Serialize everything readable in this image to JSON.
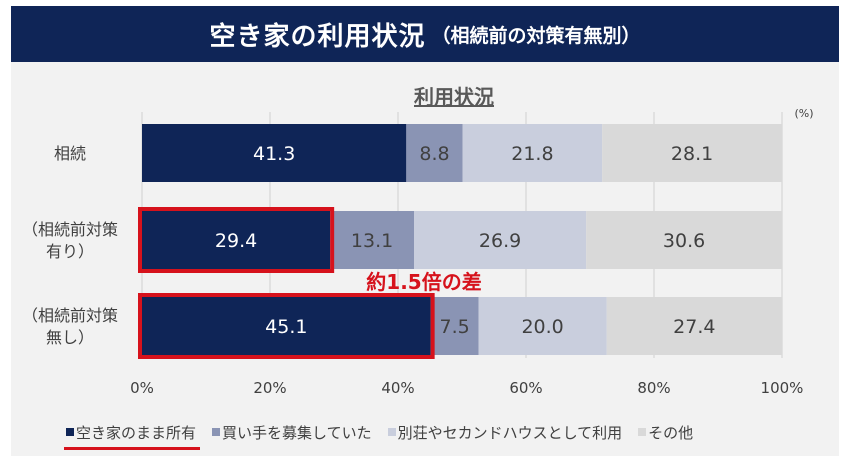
{
  "header": {
    "title": "空き家の利用状況",
    "subtitle": "（相続前の対策有無別）"
  },
  "chart_data": {
    "type": "bar",
    "orientation": "horizontal",
    "stacked": true,
    "title": "利用状況",
    "unit_label": "(%)",
    "categories": [
      [
        "相続"
      ],
      [
        "（相続前対策",
        "有り）"
      ],
      [
        "（相続前対策",
        "無し）"
      ]
    ],
    "series": [
      {
        "name": "空き家のまま所有",
        "values": [
          41.3,
          29.4,
          45.1
        ],
        "color": "#0f2557",
        "label_color": "#ffffff"
      },
      {
        "name": "買い手を募集していた",
        "values": [
          8.8,
          13.1,
          7.5
        ],
        "color": "#8a94b4",
        "label_color": "#404040"
      },
      {
        "name": "別荘やセカンドハウスとして利用",
        "values": [
          21.8,
          26.9,
          20.0
        ],
        "color": "#c9cedd",
        "label_color": "#404040"
      },
      {
        "name": "その他",
        "values": [
          28.1,
          30.6,
          27.4
        ],
        "color": "#d9d9d9",
        "label_color": "#404040"
      }
    ],
    "value_labels": [
      [
        "41.3",
        "8.8",
        "21.8",
        "28.1"
      ],
      [
        "29.4",
        "13.1",
        "26.9",
        "30.6"
      ],
      [
        "45.1",
        "7.5",
        "20.0",
        "27.4"
      ]
    ],
    "xlim": [
      0,
      100
    ],
    "xticks": [
      "0%",
      "20%",
      "40%",
      "60%",
      "80%",
      "100%"
    ],
    "grid": true,
    "legend_position": "bottom",
    "highlighted_bars": [
      1,
      2
    ],
    "highlight_color": "#d6121c",
    "annotation": "約1.5倍の差"
  }
}
